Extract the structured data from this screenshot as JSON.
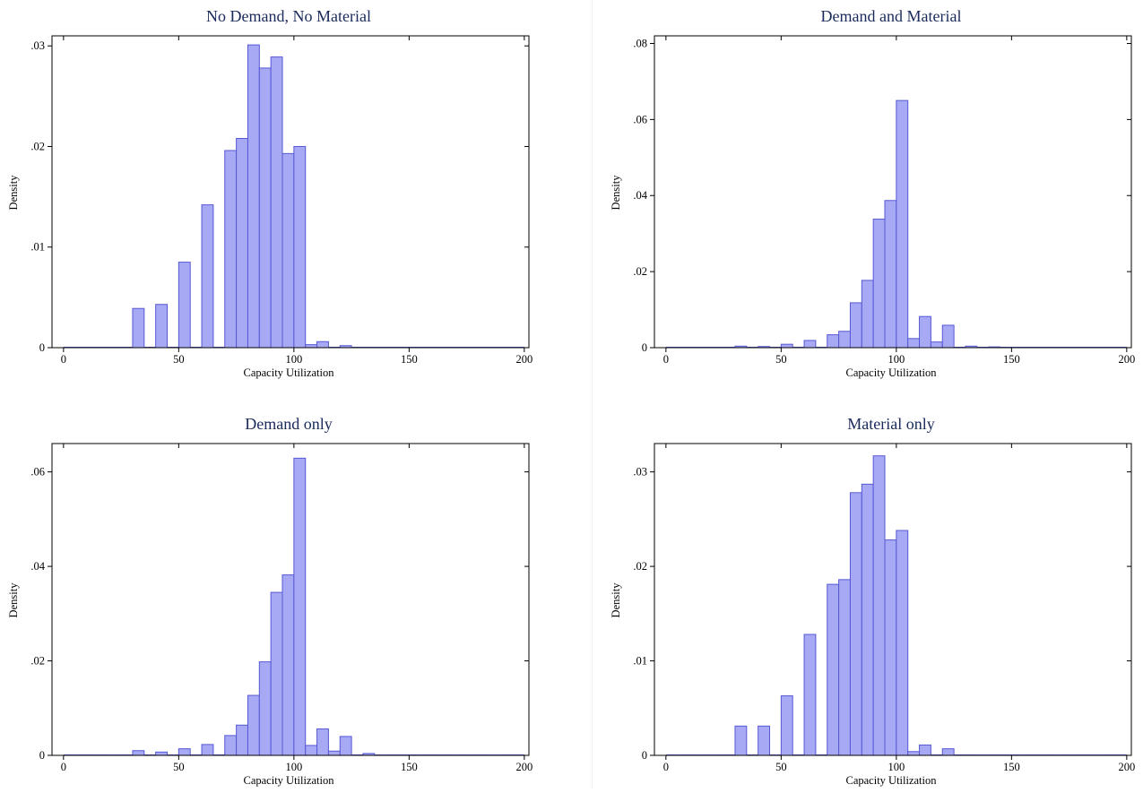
{
  "chart_data": [
    {
      "type": "bar",
      "title": "No Demand, No Material",
      "xlabel": "Capacity Utilization",
      "ylabel": "Density",
      "xlim": [
        -5,
        202
      ],
      "ylim": [
        0,
        0.031
      ],
      "xticks": [
        0,
        50,
        100,
        150,
        200
      ],
      "xtick_labels": [
        "0",
        "50",
        "100",
        "150",
        "200"
      ],
      "yticks": [
        0,
        0.01,
        0.02,
        0.03
      ],
      "ytick_labels": [
        "0",
        ".01",
        ".02",
        ".03"
      ],
      "bin_width": 5,
      "bins": [
        {
          "x": 30,
          "y": 0.0039
        },
        {
          "x": 40,
          "y": 0.0043
        },
        {
          "x": 50,
          "y": 0.0085
        },
        {
          "x": 60,
          "y": 0.0142
        },
        {
          "x": 70,
          "y": 0.0196
        },
        {
          "x": 75,
          "y": 0.0208
        },
        {
          "x": 80,
          "y": 0.0301
        },
        {
          "x": 85,
          "y": 0.0278
        },
        {
          "x": 90,
          "y": 0.0289
        },
        {
          "x": 95,
          "y": 0.0193
        },
        {
          "x": 100,
          "y": 0.02
        },
        {
          "x": 105,
          "y": 0.0003
        },
        {
          "x": 110,
          "y": 0.0006
        },
        {
          "x": 120,
          "y": 0.0002
        }
      ]
    },
    {
      "type": "bar",
      "title": "Demand and Material",
      "xlabel": "Capacity Utilization",
      "ylabel": "Density",
      "xlim": [
        -5,
        202
      ],
      "ylim": [
        0,
        0.082
      ],
      "xticks": [
        0,
        50,
        100,
        150,
        200
      ],
      "xtick_labels": [
        "0",
        "50",
        "100",
        "150",
        "200"
      ],
      "yticks": [
        0,
        0.02,
        0.04,
        0.06,
        0.08
      ],
      "ytick_labels": [
        "0",
        ".02",
        ".04",
        ".06",
        ".08"
      ],
      "bin_width": 5,
      "bins": [
        {
          "x": 30,
          "y": 0.0004
        },
        {
          "x": 40,
          "y": 0.0003
        },
        {
          "x": 50,
          "y": 0.0009
        },
        {
          "x": 60,
          "y": 0.0019
        },
        {
          "x": 70,
          "y": 0.0034
        },
        {
          "x": 75,
          "y": 0.0043
        },
        {
          "x": 80,
          "y": 0.0118
        },
        {
          "x": 85,
          "y": 0.0177
        },
        {
          "x": 90,
          "y": 0.0338
        },
        {
          "x": 95,
          "y": 0.0387
        },
        {
          "x": 100,
          "y": 0.065
        },
        {
          "x": 105,
          "y": 0.0024
        },
        {
          "x": 110,
          "y": 0.0082
        },
        {
          "x": 115,
          "y": 0.0015
        },
        {
          "x": 120,
          "y": 0.0059
        },
        {
          "x": 130,
          "y": 0.0004
        },
        {
          "x": 140,
          "y": 0.0002
        }
      ]
    },
    {
      "type": "bar",
      "title": "Demand only",
      "xlabel": "Capacity Utilization",
      "ylabel": "Density",
      "xlim": [
        -5,
        202
      ],
      "ylim": [
        0,
        0.066
      ],
      "xticks": [
        0,
        50,
        100,
        150,
        200
      ],
      "xtick_labels": [
        "0",
        "50",
        "100",
        "150",
        "200"
      ],
      "yticks": [
        0,
        0.02,
        0.04,
        0.06
      ],
      "ytick_labels": [
        "0",
        ".02",
        ".04",
        ".06"
      ],
      "bin_width": 5,
      "bins": [
        {
          "x": 30,
          "y": 0.001
        },
        {
          "x": 40,
          "y": 0.0007
        },
        {
          "x": 50,
          "y": 0.0014
        },
        {
          "x": 60,
          "y": 0.0023
        },
        {
          "x": 70,
          "y": 0.0042
        },
        {
          "x": 75,
          "y": 0.0064
        },
        {
          "x": 80,
          "y": 0.0127
        },
        {
          "x": 85,
          "y": 0.0198
        },
        {
          "x": 90,
          "y": 0.0345
        },
        {
          "x": 95,
          "y": 0.0382
        },
        {
          "x": 100,
          "y": 0.0629
        },
        {
          "x": 105,
          "y": 0.0021
        },
        {
          "x": 110,
          "y": 0.0056
        },
        {
          "x": 115,
          "y": 0.0009
        },
        {
          "x": 120,
          "y": 0.004
        },
        {
          "x": 130,
          "y": 0.0004
        }
      ]
    },
    {
      "type": "bar",
      "title": "Material only",
      "xlabel": "Capacity Utilization",
      "ylabel": "Density",
      "xlim": [
        -5,
        202
      ],
      "ylim": [
        0,
        0.033
      ],
      "xticks": [
        0,
        50,
        100,
        150,
        200
      ],
      "xtick_labels": [
        "0",
        "50",
        "100",
        "150",
        "200"
      ],
      "yticks": [
        0,
        0.01,
        0.02,
        0.03
      ],
      "ytick_labels": [
        "0",
        ".01",
        ".02",
        ".03"
      ],
      "bin_width": 5,
      "bins": [
        {
          "x": 30,
          "y": 0.0031
        },
        {
          "x": 40,
          "y": 0.0031
        },
        {
          "x": 50,
          "y": 0.0063
        },
        {
          "x": 60,
          "y": 0.0128
        },
        {
          "x": 70,
          "y": 0.0181
        },
        {
          "x": 75,
          "y": 0.0186
        },
        {
          "x": 80,
          "y": 0.0278
        },
        {
          "x": 85,
          "y": 0.0287
        },
        {
          "x": 90,
          "y": 0.0317
        },
        {
          "x": 95,
          "y": 0.0228
        },
        {
          "x": 100,
          "y": 0.0238
        },
        {
          "x": 105,
          "y": 0.0004
        },
        {
          "x": 110,
          "y": 0.0011
        },
        {
          "x": 120,
          "y": 0.0007
        }
      ]
    }
  ]
}
